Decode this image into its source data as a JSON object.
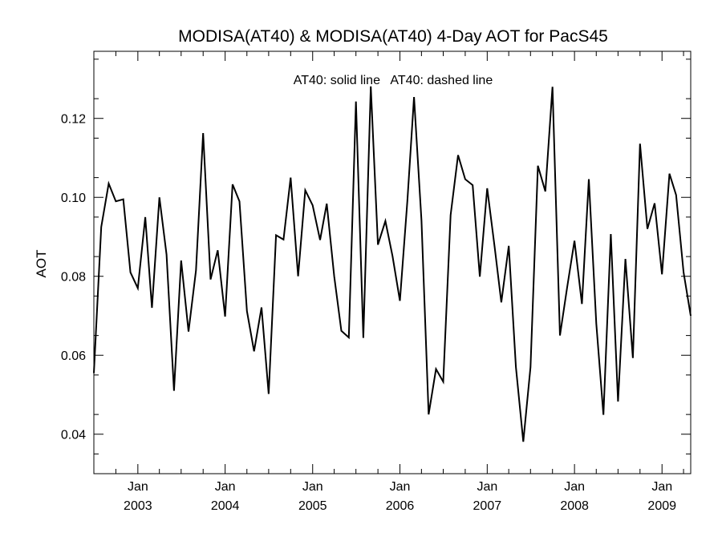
{
  "chart_data": {
    "type": "line",
    "title": "MODISA(AT40) & MODISA(AT40) 4-Day AOT for PacS45",
    "ylabel": "AOT",
    "xlabel": "",
    "annotation": "AT40: solid line   AT40: dashed line",
    "xlim": [
      "2002-07-01",
      "2009-05-01"
    ],
    "ylim": [
      0.03,
      0.137
    ],
    "y_ticks": [
      "0.04",
      "0.06",
      "0.08",
      "0.10",
      "0.12"
    ],
    "x_ticks": [
      {
        "month": "Jan",
        "year": "2003",
        "date": "2003-01-01"
      },
      {
        "month": "Jan",
        "year": "2004",
        "date": "2004-01-01"
      },
      {
        "month": "Jan",
        "year": "2005",
        "date": "2005-01-01"
      },
      {
        "month": "Jan",
        "year": "2006",
        "date": "2006-01-01"
      },
      {
        "month": "Jan",
        "year": "2007",
        "date": "2007-01-01"
      },
      {
        "month": "Jan",
        "year": "2008",
        "date": "2008-01-01"
      },
      {
        "month": "Jan",
        "year": "2009",
        "date": "2009-01-01"
      }
    ],
    "grid": false,
    "series": [
      {
        "line_style": "solid",
        "color": "#000000",
        "x": [
          "2002-07-01",
          "2002-08-01",
          "2002-09-01",
          "2002-10-01",
          "2002-11-01",
          "2002-12-01",
          "2003-01-01",
          "2003-02-01",
          "2003-03-01",
          "2003-04-01",
          "2003-05-01",
          "2003-06-01",
          "2003-07-01",
          "2003-08-01",
          "2003-09-01",
          "2003-10-01",
          "2003-11-01",
          "2003-12-01",
          "2004-01-01",
          "2004-02-01",
          "2004-03-01",
          "2004-04-01",
          "2004-05-01",
          "2004-06-01",
          "2004-07-01",
          "2004-08-01",
          "2004-09-01",
          "2004-10-01",
          "2004-11-01",
          "2004-12-01",
          "2005-01-01",
          "2005-02-01",
          "2005-03-01",
          "2005-04-01",
          "2005-05-01",
          "2005-06-01",
          "2005-07-01",
          "2005-08-01",
          "2005-09-01",
          "2005-10-01",
          "2005-11-01",
          "2005-12-01",
          "2006-01-01",
          "2006-02-01",
          "2006-03-01",
          "2006-04-01",
          "2006-05-01",
          "2006-06-01",
          "2006-07-01",
          "2006-08-01",
          "2006-09-01",
          "2006-10-01",
          "2006-11-01",
          "2006-12-01",
          "2007-01-01",
          "2007-02-01",
          "2007-03-01",
          "2007-04-01",
          "2007-05-01",
          "2007-06-01",
          "2007-07-01",
          "2007-08-01",
          "2007-09-01",
          "2007-10-01",
          "2007-11-01",
          "2007-12-01",
          "2008-01-01",
          "2008-02-01",
          "2008-03-01",
          "2008-04-01",
          "2008-05-01",
          "2008-06-01",
          "2008-07-01",
          "2008-08-01",
          "2008-09-01",
          "2008-10-01",
          "2008-11-01",
          "2008-12-01",
          "2009-01-01",
          "2009-02-01",
          "2009-03-01",
          "2009-04-01",
          "2009-05-01"
        ],
        "y": [
          0.0555,
          0.0925,
          0.1035,
          0.099,
          0.0995,
          0.081,
          0.077,
          0.095,
          0.072,
          0.1,
          0.0855,
          0.051,
          0.084,
          0.066,
          0.0815,
          0.1163,
          0.0792,
          0.0866,
          0.0698,
          0.1033,
          0.099,
          0.0712,
          0.061,
          0.0721,
          0.0502,
          0.0904,
          0.0893,
          0.105,
          0.08,
          0.1018,
          0.098,
          0.0892,
          0.0984,
          0.08,
          0.0662,
          0.0645,
          0.1243,
          0.0644,
          0.1281,
          0.088,
          0.094,
          0.0851,
          0.0738,
          0.0991,
          0.1254,
          0.0941,
          0.045,
          0.0565,
          0.0533,
          0.0955,
          0.1107,
          0.1046,
          0.1031,
          0.0799,
          0.1023,
          0.0874,
          0.0734,
          0.0877,
          0.057,
          0.0381,
          0.057,
          0.108,
          0.1015,
          0.128,
          0.065,
          0.0771,
          0.089,
          0.073,
          0.1046,
          0.068,
          0.0449,
          0.0907,
          0.0483,
          0.0844,
          0.0593,
          0.1136,
          0.092,
          0.0985,
          0.0805,
          0.106,
          0.1006,
          0.081,
          0.07
        ]
      }
    ]
  }
}
